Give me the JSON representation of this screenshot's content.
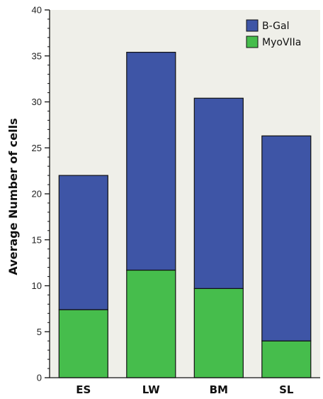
{
  "chart_data": {
    "type": "bar",
    "stacked": true,
    "title": "",
    "xlabel": "",
    "ylabel": "Average Number of cells",
    "ylim": [
      0,
      40
    ],
    "yticks": [
      0,
      5,
      10,
      15,
      20,
      25,
      30,
      35,
      40
    ],
    "y_minor_step": 1,
    "categories": [
      "ES",
      "LW",
      "BM",
      "SL"
    ],
    "series": [
      {
        "name": "MyoVIIa",
        "color": "#46bd4c",
        "values": [
          7.4,
          11.7,
          9.7,
          4.0
        ]
      },
      {
        "name": "B-Gal",
        "color": "#3e55a6",
        "values": [
          14.6,
          23.7,
          20.7,
          22.3
        ]
      }
    ],
    "legend": {
      "position": "top-right",
      "order": [
        "B-Gal",
        "MyoVIIa"
      ]
    },
    "background": "#efefe9",
    "grid": false
  }
}
